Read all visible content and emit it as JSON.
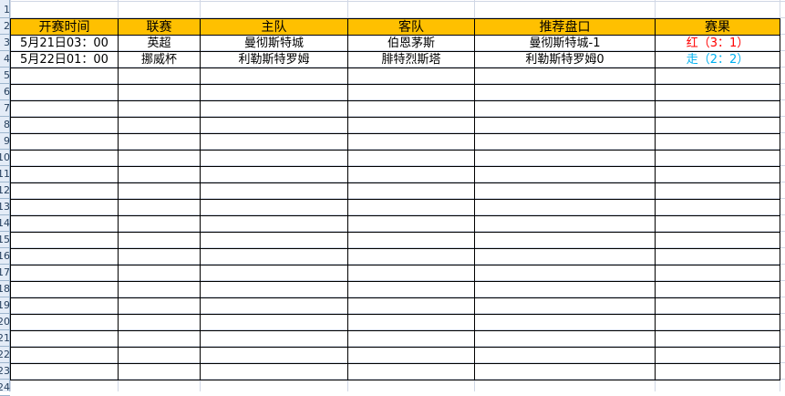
{
  "row_numbers": [
    "1",
    "2",
    "3",
    "4",
    "5",
    "6",
    "7",
    "8",
    "9",
    "10",
    "11",
    "12",
    "13",
    "14",
    "15",
    "16",
    "17",
    "18",
    "19",
    "20",
    "21",
    "22",
    "23",
    "24"
  ],
  "table": {
    "headers": [
      "开赛时间",
      "联赛",
      "主队",
      "客队",
      "推荐盘口",
      "赛果"
    ],
    "rows": [
      {
        "time": "5月21日03：00",
        "league": "英超",
        "home": "曼彻斯特城",
        "away": "伯恩茅斯",
        "pick": "曼彻斯特城-1",
        "result": "红（3：1）",
        "result_color": "#ff0000"
      },
      {
        "time": "5月22日01：00",
        "league": "挪威杯",
        "home": "利勒斯特罗姆",
        "away": "腓特烈斯塔",
        "pick": "利勒斯特罗姆0",
        "result": "走（2：2）",
        "result_color": "#00b0f0"
      }
    ],
    "empty_rows": 19
  },
  "colors": {
    "header_bg": "#ffc000",
    "win": "#ff0000",
    "push": "#00b0f0"
  }
}
